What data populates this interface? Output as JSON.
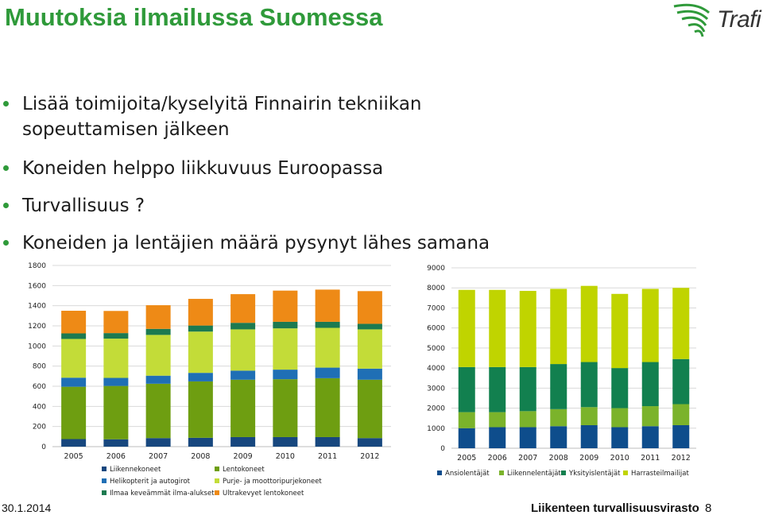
{
  "slide": {
    "title": "Muutoksia ilmailussa Suomessa",
    "logo_text": "Trafi",
    "bullets": [
      "Lisää toimijoita/kyselyitä Finnairin tekniikan",
      "sopeuttamisen jälkeen",
      "Koneiden helppo liikkuvuus Euroopassa",
      "Turvallisuus ?",
      "Koneiden ja lentäjien määrä pysynyt lähes samana"
    ],
    "accent_color": "#2f9a3a"
  },
  "footer": {
    "date": "30.1.2014",
    "org": "Liikenteen turvallisuusvirasto",
    "page": "8"
  },
  "chart_data": [
    {
      "type": "bar",
      "stacked": true,
      "categories": [
        "2005",
        "2006",
        "2007",
        "2008",
        "2009",
        "2010",
        "2011",
        "2012"
      ],
      "ylim": [
        0,
        1800
      ],
      "yticks": [
        0,
        200,
        400,
        600,
        800,
        1000,
        1200,
        1400,
        1600,
        1800
      ],
      "grid": true,
      "legend_position": "bottom",
      "series": [
        {
          "name": "Liikennekoneet",
          "color": "#17477e",
          "values": [
            75,
            73,
            85,
            88,
            95,
            95,
            95,
            85
          ]
        },
        {
          "name": "Lentokoneet",
          "color": "#6e9e11",
          "values": [
            520,
            530,
            540,
            560,
            570,
            575,
            585,
            580
          ]
        },
        {
          "name": "Helikopterit ja autogirot",
          "color": "#1f6fb5",
          "values": [
            90,
            80,
            80,
            85,
            90,
            95,
            105,
            110
          ]
        },
        {
          "name": "Purje- ja moottoripurjekoneet",
          "color": "#c3dc38",
          "values": [
            385,
            390,
            405,
            410,
            410,
            410,
            395,
            390
          ]
        },
        {
          "name": "Ilmaa keveämmät ilma-alukset",
          "color": "#1c7a50",
          "values": [
            55,
            55,
            60,
            60,
            65,
            65,
            60,
            55
          ]
        },
        {
          "name": "Ultrakevyet lentokoneet",
          "color": "#ee8a16",
          "values": [
            225,
            220,
            235,
            265,
            285,
            310,
            320,
            325
          ]
        }
      ]
    },
    {
      "type": "bar",
      "stacked": true,
      "categories": [
        "2005",
        "2006",
        "2007",
        "2008",
        "2009",
        "2010",
        "2011",
        "2012"
      ],
      "ylim": [
        0,
        9000
      ],
      "yticks": [
        0,
        1000,
        2000,
        3000,
        4000,
        5000,
        6000,
        7000,
        8000,
        9000
      ],
      "grid": true,
      "legend_position": "bottom",
      "series": [
        {
          "name": "Ansiolentäjät",
          "color": "#0e4d8c",
          "values": [
            1000,
            1050,
            1050,
            1100,
            1150,
            1050,
            1100,
            1150
          ]
        },
        {
          "name": "Liikennelentäjät",
          "color": "#7bb32b",
          "values": [
            800,
            750,
            800,
            850,
            900,
            950,
            1000,
            1050
          ]
        },
        {
          "name": "Yksityislentäjät",
          "color": "#12804f",
          "values": [
            2250,
            2250,
            2200,
            2250,
            2250,
            2000,
            2200,
            2250
          ]
        },
        {
          "name": "Harrasteilmailijat",
          "color": "#c0d400",
          "values": [
            3850,
            3850,
            3800,
            3750,
            3800,
            3700,
            3650,
            3550
          ]
        }
      ]
    }
  ]
}
